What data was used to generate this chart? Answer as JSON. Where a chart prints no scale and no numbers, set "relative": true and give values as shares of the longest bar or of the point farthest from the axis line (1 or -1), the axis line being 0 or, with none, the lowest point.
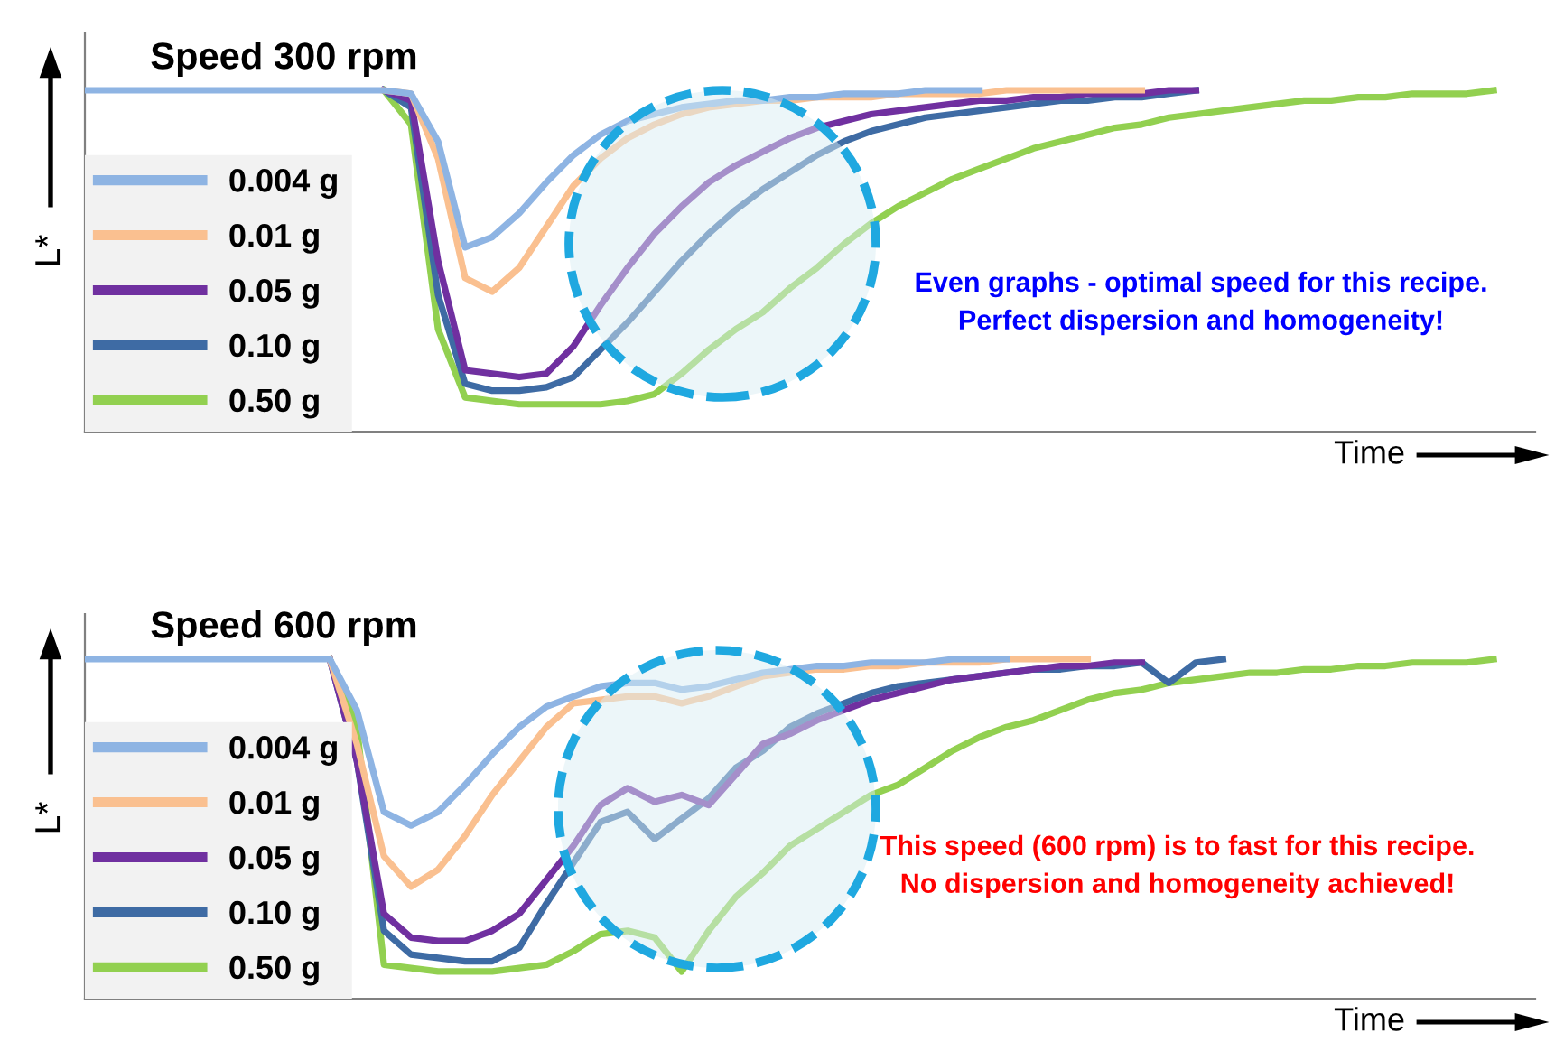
{
  "chart_data": [
    {
      "type": "line",
      "relative": true,
      "title": "Speed 300 rpm",
      "xlabel": "Time",
      "ylabel": "L*",
      "legend": "bottom left",
      "categories": [
        null,
        null,
        null,
        null,
        null,
        null,
        null,
        null,
        null,
        null,
        null,
        null,
        null,
        null,
        null,
        null,
        null,
        null,
        null,
        null,
        null,
        null,
        null,
        null,
        null,
        null,
        null,
        null,
        null,
        null,
        null,
        null,
        null,
        null,
        null,
        null,
        null,
        null,
        null,
        null,
        null,
        null,
        null,
        null,
        null,
        null,
        null,
        null,
        null,
        null,
        null,
        null,
        null
      ],
      "annotations": [
        "Even graphs - optimal speed for this recipe.\nPerfect dispersion and homogeneity!"
      ],
      "series": [
        {
          "name": "0.004 g",
          "color": "#8eb4e3",
          "values": [
            1,
            1,
            1,
            1,
            1,
            1,
            1,
            1,
            1,
            1,
            1,
            1,
            0.99,
            0.85,
            0.54,
            0.57,
            0.64,
            0.73,
            0.81,
            0.87,
            0.91,
            0.93,
            0.95,
            0.96,
            0.97,
            0.97,
            0.98,
            0.98,
            0.99,
            0.99,
            0.99,
            1,
            1,
            1,
            null,
            null,
            null,
            null,
            null,
            null,
            null,
            null,
            null,
            null,
            null,
            null,
            null,
            null,
            null,
            null,
            null,
            null,
            null
          ]
        },
        {
          "name": "0.01 g",
          "color": "#fac090",
          "values": [
            null,
            null,
            null,
            null,
            null,
            null,
            null,
            null,
            null,
            null,
            null,
            1,
            0.99,
            0.8,
            0.45,
            0.41,
            0.48,
            0.6,
            0.72,
            0.8,
            0.86,
            0.9,
            0.93,
            0.95,
            0.96,
            0.97,
            0.97,
            0.98,
            0.98,
            0.98,
            0.99,
            0.99,
            0.99,
            0.99,
            1,
            1,
            1,
            1,
            1,
            1,
            null,
            null,
            null,
            null,
            null,
            null,
            null,
            null,
            null,
            null,
            null,
            null,
            null
          ]
        },
        {
          "name": "0.05 g",
          "color": "#7030a0",
          "values": [
            null,
            null,
            null,
            null,
            null,
            null,
            null,
            null,
            null,
            null,
            null,
            1,
            0.97,
            0.5,
            0.18,
            0.17,
            0.16,
            0.17,
            0.25,
            0.37,
            0.48,
            0.58,
            0.66,
            0.73,
            0.78,
            0.82,
            0.86,
            0.89,
            0.91,
            0.93,
            0.94,
            0.95,
            0.96,
            0.97,
            0.97,
            0.98,
            0.98,
            0.99,
            0.99,
            0.99,
            1,
            1,
            null,
            null,
            null,
            null,
            null,
            null,
            null,
            null,
            null,
            null,
            null
          ]
        },
        {
          "name": "0.10 g",
          "color": "#3e6ba4",
          "values": [
            null,
            null,
            null,
            null,
            null,
            null,
            null,
            null,
            null,
            null,
            null,
            1,
            0.95,
            0.4,
            0.14,
            0.12,
            0.12,
            0.13,
            0.16,
            0.24,
            0.32,
            0.41,
            0.5,
            0.58,
            0.65,
            0.71,
            0.76,
            0.81,
            0.85,
            0.88,
            0.9,
            0.92,
            0.93,
            0.94,
            0.95,
            0.96,
            0.97,
            0.97,
            0.98,
            0.98,
            0.99,
            1,
            null,
            null,
            null,
            null,
            null,
            null,
            null,
            null,
            null,
            null,
            null
          ]
        },
        {
          "name": "0.50 g",
          "color": "#92d050",
          "values": [
            null,
            null,
            null,
            null,
            null,
            null,
            null,
            null,
            null,
            null,
            null,
            1,
            0.9,
            0.3,
            0.1,
            0.09,
            0.08,
            0.08,
            0.08,
            0.08,
            0.09,
            0.11,
            0.17,
            0.24,
            0.3,
            0.35,
            0.42,
            0.48,
            0.55,
            0.61,
            0.66,
            0.7,
            0.74,
            0.77,
            0.8,
            0.83,
            0.85,
            0.87,
            0.89,
            0.9,
            0.92,
            0.93,
            0.94,
            0.95,
            0.96,
            0.97,
            0.97,
            0.98,
            0.98,
            0.99,
            0.99,
            0.99,
            1
          ]
        }
      ]
    },
    {
      "type": "line",
      "relative": true,
      "title": "Speed 600 rpm",
      "xlabel": "Time",
      "ylabel": "L*",
      "legend": "bottom left",
      "categories": [
        null,
        null,
        null,
        null,
        null,
        null,
        null,
        null,
        null,
        null,
        null,
        null,
        null,
        null,
        null,
        null,
        null,
        null,
        null,
        null,
        null,
        null,
        null,
        null,
        null,
        null,
        null,
        null,
        null,
        null,
        null,
        null,
        null,
        null,
        null,
        null,
        null,
        null,
        null,
        null,
        null,
        null,
        null,
        null,
        null,
        null,
        null,
        null,
        null,
        null,
        null,
        null,
        null
      ],
      "annotations": [
        "This speed (600 rpm) is to fast for this recipe.\nNo dispersion and homogeneity achieved!"
      ],
      "series": [
        {
          "name": "0.004 g",
          "color": "#8eb4e3",
          "values": [
            1,
            1,
            1,
            1,
            1,
            1,
            1,
            1,
            1,
            1,
            0.85,
            0.55,
            0.51,
            0.55,
            0.63,
            0.72,
            0.8,
            0.86,
            0.89,
            0.92,
            0.93,
            0.93,
            0.91,
            0.92,
            0.94,
            0.96,
            0.97,
            0.98,
            0.98,
            0.99,
            0.99,
            0.99,
            1,
            1,
            1,
            null,
            null,
            null,
            null,
            null,
            null,
            null,
            null,
            null,
            null,
            null,
            null,
            null,
            null,
            null,
            null,
            null,
            null
          ]
        },
        {
          "name": "0.01 g",
          "color": "#fac090",
          "values": [
            null,
            null,
            null,
            null,
            null,
            null,
            null,
            null,
            null,
            1,
            0.75,
            0.42,
            0.33,
            0.38,
            0.48,
            0.6,
            0.7,
            0.8,
            0.87,
            0.88,
            0.89,
            0.89,
            0.87,
            0.89,
            0.92,
            0.95,
            0.96,
            0.97,
            0.97,
            0.98,
            0.98,
            0.99,
            0.99,
            0.99,
            1,
            1,
            1,
            1,
            null,
            null,
            null,
            null,
            null,
            null,
            null,
            null,
            null,
            null,
            null,
            null,
            null,
            null,
            null
          ]
        },
        {
          "name": "0.05 g",
          "color": "#7030a0",
          "values": [
            null,
            null,
            null,
            null,
            null,
            null,
            null,
            null,
            null,
            1,
            0.7,
            0.25,
            0.18,
            0.17,
            0.17,
            0.2,
            0.25,
            0.35,
            0.45,
            0.57,
            0.62,
            0.58,
            0.6,
            0.57,
            0.66,
            0.75,
            0.78,
            0.82,
            0.85,
            0.88,
            0.9,
            0.92,
            0.94,
            0.95,
            0.96,
            0.97,
            0.98,
            0.98,
            0.99,
            0.99,
            null,
            null,
            null,
            null,
            null,
            null,
            null,
            null,
            null,
            null,
            null,
            null,
            null
          ]
        },
        {
          "name": "0.10 g",
          "color": "#3e6ba4",
          "values": [
            null,
            null,
            null,
            null,
            null,
            null,
            null,
            null,
            null,
            1,
            0.7,
            0.2,
            0.13,
            0.12,
            0.11,
            0.11,
            0.15,
            0.28,
            0.4,
            0.52,
            0.55,
            0.47,
            0.53,
            0.59,
            0.68,
            0.73,
            0.8,
            0.84,
            0.87,
            0.9,
            0.92,
            0.93,
            0.94,
            0.95,
            0.96,
            0.97,
            0.97,
            0.98,
            0.98,
            0.99,
            0.93,
            0.99,
            1,
            null,
            null,
            null,
            null,
            null,
            null,
            null,
            null,
            null,
            null
          ]
        },
        {
          "name": "0.50 g",
          "color": "#92d050",
          "values": [
            null,
            null,
            null,
            null,
            null,
            null,
            null,
            null,
            null,
            1,
            0.8,
            0.1,
            0.09,
            0.08,
            0.08,
            0.08,
            0.09,
            0.1,
            0.14,
            0.19,
            0.2,
            0.18,
            0.08,
            0.2,
            0.3,
            0.37,
            0.45,
            0.5,
            0.55,
            0.6,
            0.63,
            0.68,
            0.73,
            0.77,
            0.8,
            0.82,
            0.85,
            0.88,
            0.9,
            0.91,
            0.93,
            0.94,
            0.95,
            0.96,
            0.96,
            0.97,
            0.97,
            0.98,
            0.98,
            0.99,
            0.99,
            0.99,
            1
          ]
        }
      ]
    }
  ]
}
